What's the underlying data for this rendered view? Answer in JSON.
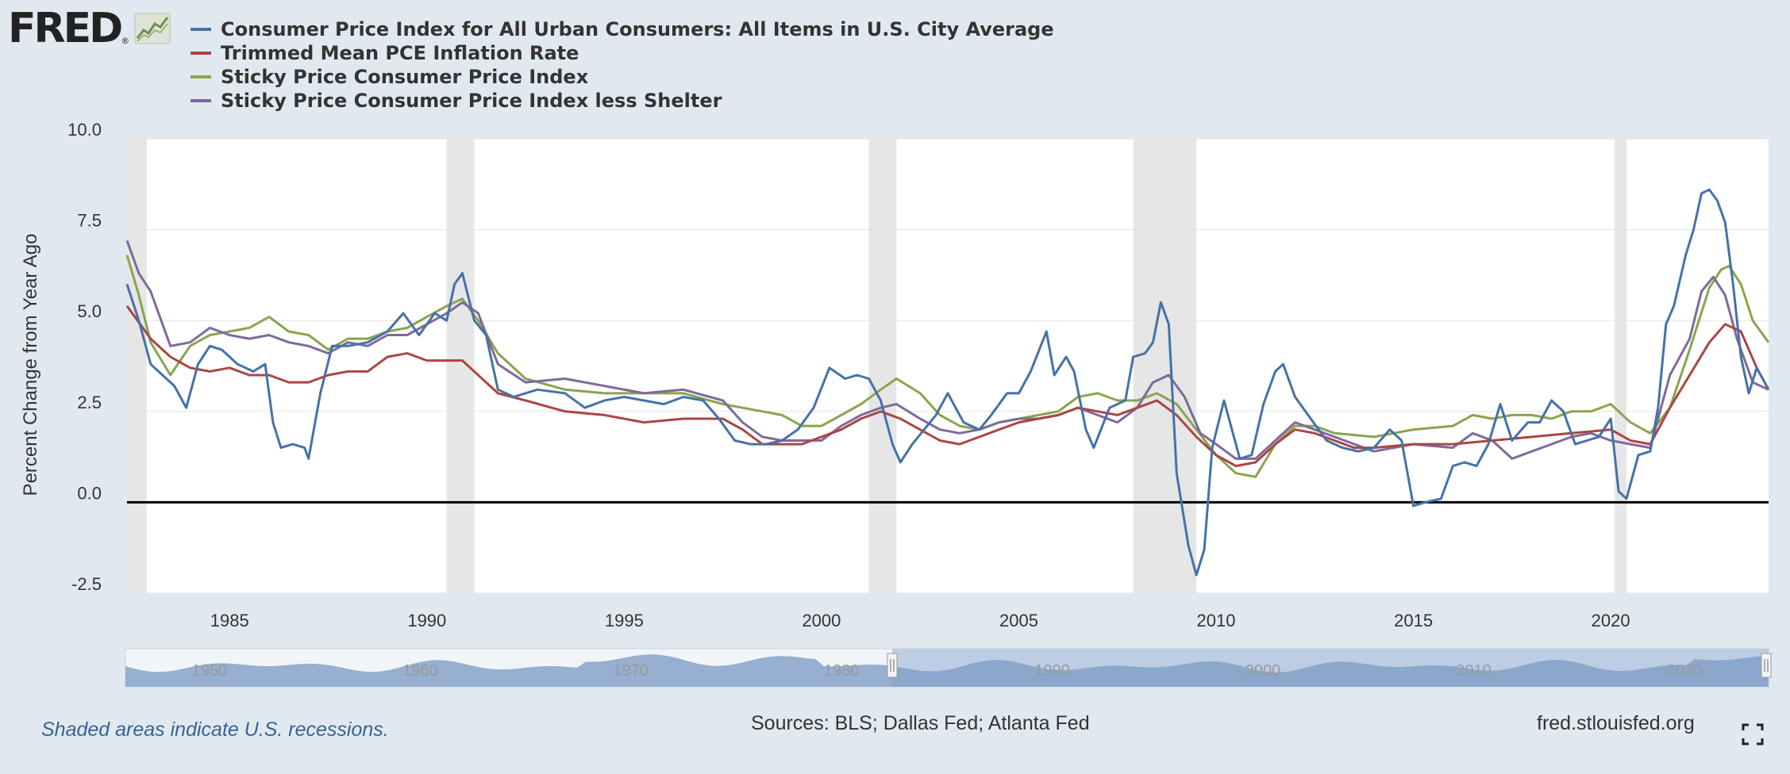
{
  "logo": {
    "text": "FRED",
    "registered": "®"
  },
  "footer": {
    "note": "Shaded areas indicate U.S. recessions.",
    "sources": "Sources: BLS; Dallas Fed; Atlanta Fed",
    "site": "fred.stlouisfed.org"
  },
  "chart_data": {
    "type": "line",
    "title": "",
    "xlabel": "",
    "ylabel": "Percent Change from Year Ago",
    "xlim": [
      1982.4,
      2024.0
    ],
    "ylim": [
      -2.5,
      10.0
    ],
    "yticks": [
      10.0,
      7.5,
      5.0,
      2.5,
      0.0,
      -2.5
    ],
    "ytick_labels": [
      "10.0",
      "7.5",
      "5.0",
      "2.5",
      "0.0",
      "-2.5"
    ],
    "xticks": [
      1985,
      1990,
      1995,
      2000,
      2005,
      2010,
      2015,
      2020
    ],
    "xtick_labels": [
      "1985",
      "1990",
      "1995",
      "2000",
      "2005",
      "2010",
      "2015",
      "2020"
    ],
    "grid": true,
    "zero_line": 0.0,
    "recessions": [
      [
        1982.4,
        1982.9
      ],
      [
        1990.5,
        1991.2
      ],
      [
        2001.2,
        2001.9
      ],
      [
        2007.9,
        2009.5
      ],
      [
        2020.1,
        2020.4
      ]
    ],
    "navigator_labels": [
      "1950",
      "1960",
      "1970",
      "1980",
      "1990",
      "2000",
      "2010",
      "2020"
    ],
    "series": [
      {
        "name": "Consumer Price Index for All Urban Consumers: All Items in U.S. City Average",
        "color": "#4572a7",
        "x": [
          1982.4,
          1982.7,
          1983.0,
          1983.3,
          1983.6,
          1983.9,
          1984.2,
          1984.5,
          1984.8,
          1985.2,
          1985.6,
          1985.9,
          1986.1,
          1986.3,
          1986.6,
          1986.9,
          1987.0,
          1987.3,
          1987.6,
          1988.0,
          1988.5,
          1989.0,
          1989.4,
          1989.8,
          1990.2,
          1990.5,
          1990.7,
          1990.9,
          1991.2,
          1991.5,
          1991.8,
          1992.2,
          1992.8,
          1993.5,
          1994.0,
          1994.5,
          1995.0,
          1995.5,
          1996.0,
          1996.5,
          1997.0,
          1997.4,
          1997.8,
          1998.2,
          1998.6,
          1999.0,
          1999.4,
          1999.8,
          2000.2,
          2000.6,
          2000.9,
          2001.2,
          2001.5,
          2001.8,
          2002.0,
          2002.3,
          2002.6,
          2002.9,
          2003.2,
          2003.6,
          2004.0,
          2004.3,
          2004.7,
          2005.0,
          2005.3,
          2005.7,
          2005.9,
          2006.2,
          2006.4,
          2006.7,
          2006.9,
          2007.3,
          2007.7,
          2007.9,
          2008.2,
          2008.4,
          2008.6,
          2008.8,
          2009.0,
          2009.3,
          2009.5,
          2009.7,
          2009.9,
          2010.2,
          2010.6,
          2010.9,
          2011.2,
          2011.5,
          2011.7,
          2012.0,
          2012.4,
          2012.8,
          2013.2,
          2013.6,
          2014.0,
          2014.4,
          2014.7,
          2015.0,
          2015.3,
          2015.7,
          2016.0,
          2016.3,
          2016.6,
          2016.9,
          2017.2,
          2017.5,
          2017.9,
          2018.2,
          2018.5,
          2018.8,
          2019.1,
          2019.4,
          2019.7,
          2020.0,
          2020.2,
          2020.4,
          2020.7,
          2021.0,
          2021.2,
          2021.4,
          2021.6,
          2021.9,
          2022.1,
          2022.3,
          2022.5,
          2022.7,
          2022.9,
          2023.1,
          2023.3,
          2023.5,
          2023.7,
          2024.0
        ],
        "values": [
          6.0,
          5.0,
          3.8,
          3.5,
          3.2,
          2.6,
          3.8,
          4.3,
          4.2,
          3.8,
          3.6,
          3.8,
          2.2,
          1.5,
          1.6,
          1.5,
          1.2,
          3.0,
          4.3,
          4.3,
          4.4,
          4.7,
          5.2,
          4.6,
          5.2,
          5.0,
          6.0,
          6.3,
          5.0,
          4.6,
          3.1,
          2.9,
          3.1,
          3.0,
          2.6,
          2.8,
          2.9,
          2.8,
          2.7,
          2.9,
          2.8,
          2.3,
          1.7,
          1.6,
          1.6,
          1.7,
          2.0,
          2.6,
          3.7,
          3.4,
          3.5,
          3.4,
          2.8,
          1.6,
          1.1,
          1.6,
          2.0,
          2.4,
          3.0,
          2.2,
          2.0,
          2.4,
          3.0,
          3.0,
          3.6,
          4.7,
          3.5,
          4.0,
          3.6,
          2.0,
          1.5,
          2.6,
          2.8,
          4.0,
          4.1,
          4.4,
          5.5,
          4.9,
          0.8,
          -1.2,
          -2.0,
          -1.3,
          1.5,
          2.8,
          1.2,
          1.3,
          2.7,
          3.6,
          3.8,
          2.9,
          2.3,
          1.7,
          1.5,
          1.4,
          1.5,
          2.0,
          1.7,
          -0.1,
          0.0,
          0.1,
          1.0,
          1.1,
          1.0,
          1.6,
          2.7,
          1.7,
          2.2,
          2.2,
          2.8,
          2.5,
          1.6,
          1.7,
          1.8,
          2.3,
          0.3,
          0.1,
          1.3,
          1.4,
          2.6,
          4.9,
          5.4,
          6.8,
          7.5,
          8.5,
          8.6,
          8.3,
          7.7,
          6.0,
          4.0,
          3.0,
          3.7,
          3.1
        ]
      },
      {
        "name": "Trimmed Mean PCE Inflation Rate",
        "color": "#aa4643",
        "x": [
          1982.4,
          1983.0,
          1983.5,
          1984.0,
          1984.5,
          1985.0,
          1985.5,
          1986.0,
          1986.5,
          1987.0,
          1987.5,
          1988.0,
          1988.5,
          1989.0,
          1989.5,
          1990.0,
          1990.5,
          1990.9,
          1991.3,
          1991.8,
          1992.5,
          1993.5,
          1994.5,
          1995.5,
          1996.5,
          1997.5,
          1998.0,
          1998.5,
          1999.0,
          1999.5,
          2000.0,
          2000.5,
          2001.0,
          2001.5,
          2002.0,
          2002.5,
          2003.0,
          2003.5,
          2004.0,
          2004.5,
          2005.0,
          2005.5,
          2006.0,
          2006.5,
          2007.0,
          2007.5,
          2008.0,
          2008.5,
          2009.0,
          2009.5,
          2010.0,
          2010.5,
          2011.0,
          2011.5,
          2012.0,
          2012.5,
          2013.0,
          2013.5,
          2014.0,
          2015.0,
          2016.0,
          2017.0,
          2018.0,
          2019.0,
          2020.0,
          2020.5,
          2021.0,
          2021.5,
          2022.0,
          2022.5,
          2022.9,
          2023.3,
          2023.7,
          2024.0
        ],
        "values": [
          5.4,
          4.5,
          4.0,
          3.7,
          3.6,
          3.7,
          3.5,
          3.5,
          3.3,
          3.3,
          3.5,
          3.6,
          3.6,
          4.0,
          4.1,
          3.9,
          3.9,
          3.9,
          3.5,
          3.0,
          2.8,
          2.5,
          2.4,
          2.2,
          2.3,
          2.3,
          2.0,
          1.6,
          1.6,
          1.6,
          1.8,
          2.0,
          2.3,
          2.5,
          2.3,
          2.0,
          1.7,
          1.6,
          1.8,
          2.0,
          2.2,
          2.3,
          2.4,
          2.6,
          2.5,
          2.4,
          2.6,
          2.8,
          2.4,
          1.8,
          1.3,
          1.0,
          1.1,
          1.6,
          2.0,
          1.9,
          1.7,
          1.5,
          1.5,
          1.6,
          1.6,
          1.7,
          1.8,
          1.9,
          2.0,
          1.7,
          1.6,
          2.6,
          3.5,
          4.4,
          4.9,
          4.7,
          3.7,
          3.1
        ]
      },
      {
        "name": "Sticky Price Consumer Price Index",
        "color": "#89a54e",
        "x": [
          1982.4,
          1982.7,
          1983.0,
          1983.5,
          1984.0,
          1984.5,
          1985.0,
          1985.5,
          1986.0,
          1986.5,
          1987.0,
          1987.5,
          1988.0,
          1988.5,
          1989.0,
          1989.5,
          1990.0,
          1990.5,
          1990.9,
          1991.3,
          1991.8,
          1992.5,
          1993.5,
          1994.5,
          1995.5,
          1996.5,
          1997.5,
          1998.0,
          1998.5,
          1999.0,
          1999.5,
          2000.0,
          2000.5,
          2001.0,
          2001.5,
          2001.9,
          2002.5,
          2003.0,
          2003.5,
          2004.0,
          2004.5,
          2005.0,
          2005.5,
          2006.0,
          2006.5,
          2007.0,
          2007.5,
          2008.0,
          2008.5,
          2009.0,
          2009.5,
          2010.0,
          2010.5,
          2011.0,
          2011.5,
          2012.0,
          2012.5,
          2013.0,
          2014.0,
          2015.0,
          2016.0,
          2016.5,
          2017.0,
          2017.5,
          2018.0,
          2018.5,
          2019.0,
          2019.5,
          2020.0,
          2020.5,
          2021.0,
          2021.5,
          2022.0,
          2022.5,
          2022.8,
          2023.0,
          2023.3,
          2023.6,
          2024.0
        ],
        "values": [
          6.8,
          5.7,
          4.4,
          3.5,
          4.3,
          4.6,
          4.7,
          4.8,
          5.1,
          4.7,
          4.6,
          4.2,
          4.5,
          4.5,
          4.7,
          4.8,
          5.1,
          5.4,
          5.6,
          5.0,
          4.1,
          3.4,
          3.1,
          3.0,
          3.0,
          3.0,
          2.7,
          2.6,
          2.5,
          2.4,
          2.1,
          2.1,
          2.4,
          2.7,
          3.1,
          3.4,
          3.0,
          2.4,
          2.1,
          2.0,
          2.2,
          2.3,
          2.4,
          2.5,
          2.9,
          3.0,
          2.8,
          2.8,
          3.0,
          2.7,
          2.0,
          1.3,
          0.8,
          0.7,
          1.6,
          2.1,
          2.1,
          1.9,
          1.8,
          2.0,
          2.1,
          2.4,
          2.3,
          2.4,
          2.4,
          2.3,
          2.5,
          2.5,
          2.7,
          2.2,
          1.9,
          2.6,
          4.2,
          5.9,
          6.4,
          6.5,
          6.0,
          5.0,
          4.4
        ]
      },
      {
        "name": "Sticky Price Consumer Price Index less Shelter",
        "color": "#80699b",
        "x": [
          1982.4,
          1982.7,
          1983.0,
          1983.5,
          1984.0,
          1984.5,
          1985.0,
          1985.5,
          1986.0,
          1986.5,
          1987.0,
          1987.5,
          1988.0,
          1988.5,
          1989.0,
          1989.5,
          1990.0,
          1990.5,
          1990.9,
          1991.3,
          1991.8,
          1992.5,
          1993.5,
          1994.5,
          1995.5,
          1996.5,
          1997.5,
          1998.0,
          1998.5,
          1999.0,
          1999.5,
          2000.0,
          2000.5,
          2001.0,
          2001.5,
          2001.9,
          2002.5,
          2003.0,
          2003.5,
          2004.0,
          2004.5,
          2005.0,
          2005.5,
          2006.0,
          2006.5,
          2007.0,
          2007.5,
          2008.0,
          2008.4,
          2008.8,
          2009.2,
          2009.6,
          2010.0,
          2010.5,
          2011.0,
          2011.5,
          2012.0,
          2012.5,
          2013.0,
          2014.0,
          2015.0,
          2016.0,
          2016.5,
          2017.0,
          2017.5,
          2018.0,
          2018.5,
          2019.0,
          2019.5,
          2020.0,
          2020.5,
          2021.0,
          2021.5,
          2022.0,
          2022.3,
          2022.6,
          2022.9,
          2023.2,
          2023.6,
          2024.0
        ],
        "values": [
          7.2,
          6.3,
          5.8,
          4.3,
          4.4,
          4.8,
          4.6,
          4.5,
          4.6,
          4.4,
          4.3,
          4.1,
          4.4,
          4.3,
          4.6,
          4.6,
          4.9,
          5.2,
          5.5,
          5.2,
          3.8,
          3.3,
          3.4,
          3.2,
          3.0,
          3.1,
          2.8,
          2.2,
          1.8,
          1.7,
          1.7,
          1.7,
          2.1,
          2.4,
          2.6,
          2.7,
          2.3,
          2.0,
          1.9,
          2.0,
          2.2,
          2.3,
          2.3,
          2.4,
          2.6,
          2.4,
          2.2,
          2.6,
          3.3,
          3.5,
          2.9,
          1.9,
          1.6,
          1.2,
          1.2,
          1.7,
          2.2,
          2.0,
          1.8,
          1.4,
          1.6,
          1.5,
          1.9,
          1.7,
          1.2,
          1.4,
          1.6,
          1.8,
          1.9,
          1.7,
          1.6,
          1.5,
          3.5,
          4.5,
          5.8,
          6.2,
          5.7,
          4.5,
          3.3,
          3.1
        ]
      }
    ]
  }
}
